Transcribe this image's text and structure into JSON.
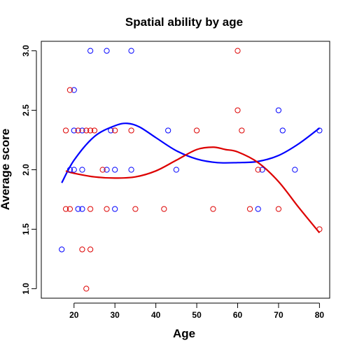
{
  "chart_data": {
    "type": "scatter",
    "title": "Spatial ability by age",
    "xlabel": "Age",
    "ylabel": "Average score",
    "xlim": [
      12,
      82.5
    ],
    "ylim": [
      0.92,
      3.08
    ],
    "x_ticks": [
      20,
      30,
      40,
      50,
      60,
      70,
      80
    ],
    "y_ticks": [
      1.0,
      1.5,
      2.0,
      2.5,
      3.0
    ],
    "y_tick_labels": [
      "1.0",
      "1.5",
      "2.0",
      "2.5",
      "3.0"
    ],
    "grid": false,
    "legend": "none",
    "series": [
      {
        "color": "#0000ff",
        "marker": "open-circle",
        "points": [
          {
            "x": 17,
            "y": 1.33
          },
          {
            "x": 19,
            "y": 2.0
          },
          {
            "x": 20,
            "y": 2.0
          },
          {
            "x": 20,
            "y": 2.33
          },
          {
            "x": 20,
            "y": 2.67
          },
          {
            "x": 21,
            "y": 1.67
          },
          {
            "x": 22,
            "y": 2.0
          },
          {
            "x": 22,
            "y": 2.33
          },
          {
            "x": 22,
            "y": 1.67
          },
          {
            "x": 24,
            "y": 3.0
          },
          {
            "x": 28,
            "y": 3.0
          },
          {
            "x": 28,
            "y": 2.0
          },
          {
            "x": 29,
            "y": 2.33
          },
          {
            "x": 30,
            "y": 2.0
          },
          {
            "x": 30,
            "y": 1.67
          },
          {
            "x": 34,
            "y": 3.0
          },
          {
            "x": 34,
            "y": 2.0
          },
          {
            "x": 43,
            "y": 2.33
          },
          {
            "x": 45,
            "y": 2.0
          },
          {
            "x": 65,
            "y": 1.67
          },
          {
            "x": 66,
            "y": 2.0
          },
          {
            "x": 70,
            "y": 2.5
          },
          {
            "x": 71,
            "y": 2.33
          },
          {
            "x": 74,
            "y": 2.0
          },
          {
            "x": 80,
            "y": 2.33
          }
        ],
        "smooth": [
          [
            17,
            1.89
          ],
          [
            20,
            2.08
          ],
          [
            25,
            2.28
          ],
          [
            30,
            2.37
          ],
          [
            33,
            2.39
          ],
          [
            36,
            2.36
          ],
          [
            40,
            2.27
          ],
          [
            45,
            2.16
          ],
          [
            50,
            2.09
          ],
          [
            55,
            2.06
          ],
          [
            60,
            2.06
          ],
          [
            65,
            2.07
          ],
          [
            70,
            2.12
          ],
          [
            75,
            2.22
          ],
          [
            80,
            2.35
          ]
        ]
      },
      {
        "color": "#dd0000",
        "marker": "open-circle",
        "points": [
          {
            "x": 18,
            "y": 2.33
          },
          {
            "x": 18,
            "y": 1.67
          },
          {
            "x": 19,
            "y": 2.67
          },
          {
            "x": 19,
            "y": 1.67
          },
          {
            "x": 21,
            "y": 2.33
          },
          {
            "x": 22,
            "y": 1.33
          },
          {
            "x": 23,
            "y": 2.33
          },
          {
            "x": 23,
            "y": 1.0
          },
          {
            "x": 24,
            "y": 2.33
          },
          {
            "x": 24,
            "y": 1.67
          },
          {
            "x": 24,
            "y": 1.33
          },
          {
            "x": 25,
            "y": 2.33
          },
          {
            "x": 27,
            "y": 2.0
          },
          {
            "x": 28,
            "y": 1.67
          },
          {
            "x": 30,
            "y": 2.33
          },
          {
            "x": 34,
            "y": 2.33
          },
          {
            "x": 35,
            "y": 1.67
          },
          {
            "x": 42,
            "y": 1.67
          },
          {
            "x": 50,
            "y": 2.33
          },
          {
            "x": 54,
            "y": 1.67
          },
          {
            "x": 60,
            "y": 3.0
          },
          {
            "x": 60,
            "y": 2.5
          },
          {
            "x": 61,
            "y": 2.33
          },
          {
            "x": 63,
            "y": 1.67
          },
          {
            "x": 65,
            "y": 2.0
          },
          {
            "x": 70,
            "y": 1.67
          },
          {
            "x": 80,
            "y": 1.5
          }
        ],
        "smooth": [
          [
            18,
            1.99
          ],
          [
            20,
            1.97
          ],
          [
            25,
            1.94
          ],
          [
            30,
            1.93
          ],
          [
            35,
            1.94
          ],
          [
            40,
            1.99
          ],
          [
            45,
            2.08
          ],
          [
            50,
            2.17
          ],
          [
            54,
            2.19
          ],
          [
            57,
            2.17
          ],
          [
            60,
            2.15
          ],
          [
            65,
            2.06
          ],
          [
            70,
            1.9
          ],
          [
            75,
            1.68
          ],
          [
            80,
            1.47
          ]
        ]
      }
    ]
  }
}
